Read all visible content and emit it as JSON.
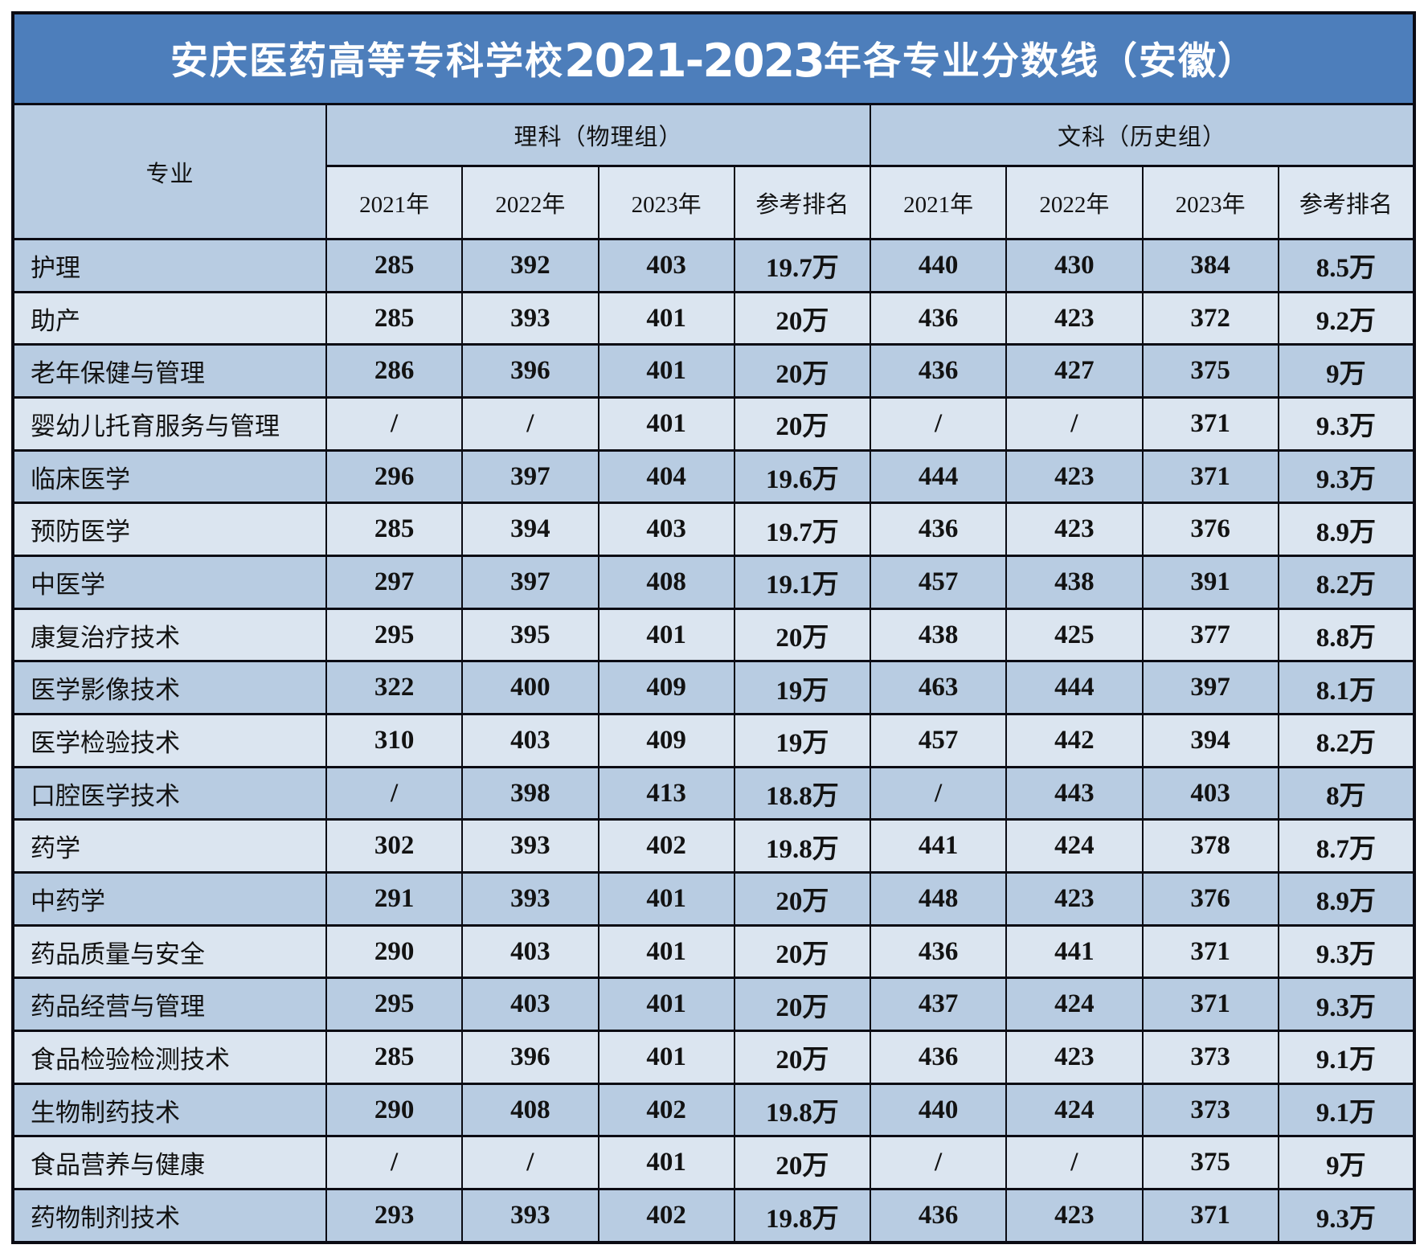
{
  "title": {
    "school": "安庆医药高等专科学校",
    "year_range": "2021-2023",
    "suffix": "年各专业分数线（安徽）"
  },
  "table": {
    "major_column_header": "专业",
    "groups": [
      {
        "label": "理科（物理组）"
      },
      {
        "label": "文科（历史组）"
      }
    ],
    "sub_headers": [
      "2021年",
      "2022年",
      "2023年",
      "参考排名",
      "2021年",
      "2022年",
      "2023年",
      "参考排名"
    ],
    "rows": [
      {
        "major": "护理",
        "values": [
          "285",
          "392",
          "403",
          "19.7万",
          "440",
          "430",
          "384",
          "8.5万"
        ]
      },
      {
        "major": "助产",
        "values": [
          "285",
          "393",
          "401",
          "20万",
          "436",
          "423",
          "372",
          "9.2万"
        ]
      },
      {
        "major": "老年保健与管理",
        "values": [
          "286",
          "396",
          "401",
          "20万",
          "436",
          "427",
          "375",
          "9万"
        ]
      },
      {
        "major": "婴幼儿托育服务与管理",
        "values": [
          "/",
          "/",
          "401",
          "20万",
          "/",
          "/",
          "371",
          "9.3万"
        ]
      },
      {
        "major": "临床医学",
        "values": [
          "296",
          "397",
          "404",
          "19.6万",
          "444",
          "423",
          "371",
          "9.3万"
        ]
      },
      {
        "major": "预防医学",
        "values": [
          "285",
          "394",
          "403",
          "19.7万",
          "436",
          "423",
          "376",
          "8.9万"
        ]
      },
      {
        "major": "中医学",
        "values": [
          "297",
          "397",
          "408",
          "19.1万",
          "457",
          "438",
          "391",
          "8.2万"
        ]
      },
      {
        "major": "康复治疗技术",
        "values": [
          "295",
          "395",
          "401",
          "20万",
          "438",
          "425",
          "377",
          "8.8万"
        ]
      },
      {
        "major": "医学影像技术",
        "values": [
          "322",
          "400",
          "409",
          "19万",
          "463",
          "444",
          "397",
          "8.1万"
        ]
      },
      {
        "major": "医学检验技术",
        "values": [
          "310",
          "403",
          "409",
          "19万",
          "457",
          "442",
          "394",
          "8.2万"
        ]
      },
      {
        "major": "口腔医学技术",
        "values": [
          "/",
          "398",
          "413",
          "18.8万",
          "/",
          "443",
          "403",
          "8万"
        ]
      },
      {
        "major": "药学",
        "values": [
          "302",
          "393",
          "402",
          "19.8万",
          "441",
          "424",
          "378",
          "8.7万"
        ]
      },
      {
        "major": "中药学",
        "values": [
          "291",
          "393",
          "401",
          "20万",
          "448",
          "423",
          "376",
          "8.9万"
        ]
      },
      {
        "major": "药品质量与安全",
        "values": [
          "290",
          "403",
          "401",
          "20万",
          "436",
          "441",
          "371",
          "9.3万"
        ]
      },
      {
        "major": "药品经营与管理",
        "values": [
          "295",
          "403",
          "401",
          "20万",
          "437",
          "424",
          "371",
          "9.3万"
        ]
      },
      {
        "major": "食品检验检测技术",
        "values": [
          "285",
          "396",
          "401",
          "20万",
          "436",
          "423",
          "373",
          "9.1万"
        ]
      },
      {
        "major": "生物制药技术",
        "values": [
          "290",
          "408",
          "402",
          "19.8万",
          "440",
          "424",
          "373",
          "9.1万"
        ]
      },
      {
        "major": "食品营养与健康",
        "values": [
          "/",
          "/",
          "401",
          "20万",
          "/",
          "/",
          "375",
          "9万"
        ]
      },
      {
        "major": "药物制剂技术",
        "values": [
          "293",
          "393",
          "402",
          "19.8万",
          "436",
          "423",
          "371",
          "9.3万"
        ]
      }
    ]
  },
  "colors": {
    "title_bg": "#4d7ebb",
    "title_text": "#ffffff",
    "header_bg": "#b8cce2",
    "subheader_bg": "#dde7f2",
    "row_dark": "#b8cce2",
    "row_light": "#dbe5f0",
    "border": "#0b0b13"
  }
}
